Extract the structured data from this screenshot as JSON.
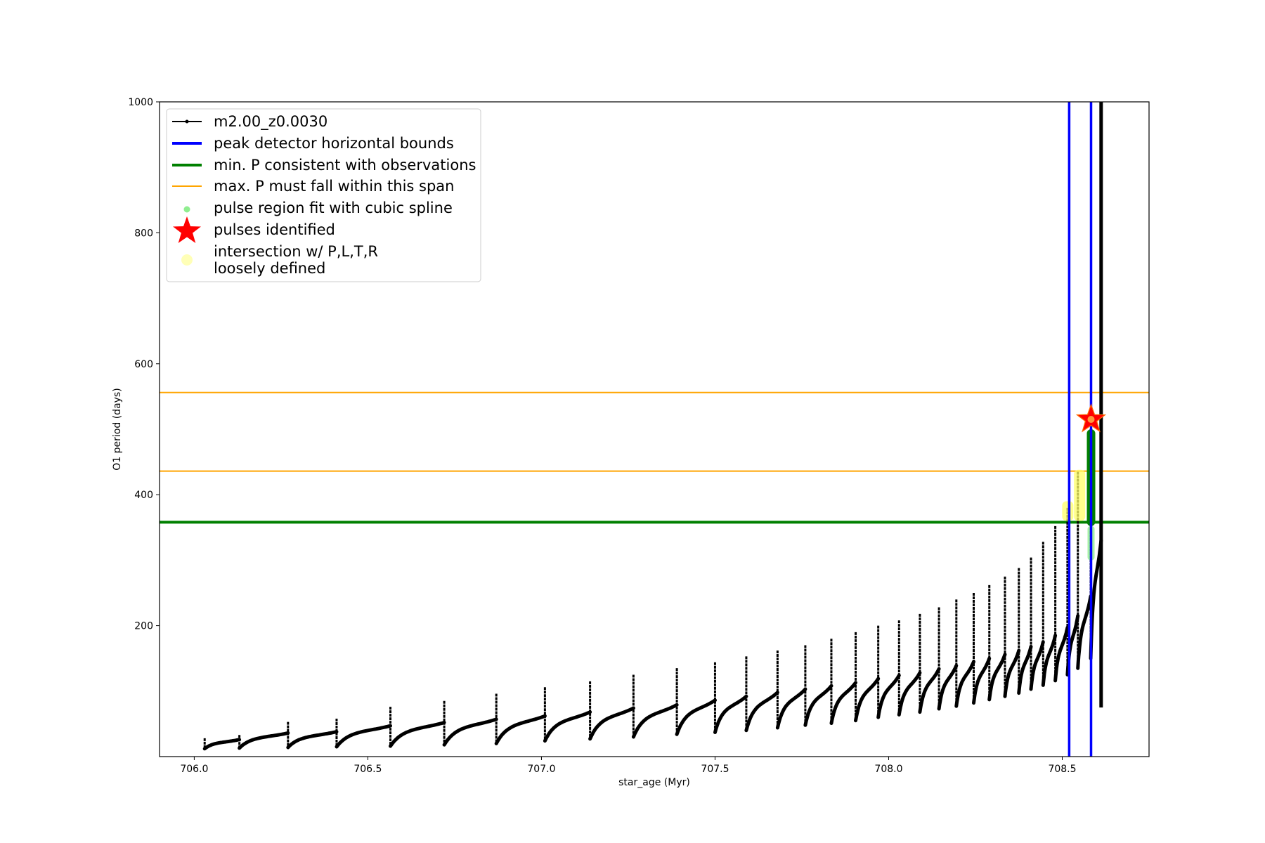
{
  "chart_data": {
    "type": "line",
    "title": "",
    "xlabel": "star_age (Myr)",
    "ylabel": "O1 period (days)",
    "xlim": [
      705.9,
      708.75
    ],
    "ylim": [
      0,
      1000
    ],
    "xticks": [
      706.0,
      706.5,
      707.0,
      707.5,
      708.0,
      708.5
    ],
    "xtick_labels": [
      "706.0",
      "706.5",
      "707.0",
      "707.5",
      "708.0",
      "708.5"
    ],
    "yticks": [
      200,
      400,
      600,
      800,
      1000
    ],
    "ytick_labels": [
      "200",
      "400",
      "600",
      "800",
      "1000"
    ],
    "grid": false,
    "legend_position": "upper-left",
    "colors": {
      "track": "#000000",
      "peak_bounds": "#0000ff",
      "min_period": "#008000",
      "max_period": "#ffa500",
      "pulse_fit": "#90ee90",
      "pulse_fit_dark": "#008000",
      "pulse_star": "#ff0000",
      "intersection": "#ffff66"
    },
    "legend": [
      {
        "label": "m2.00_z0.0030",
        "kind": "line-marker",
        "color": "#000000"
      },
      {
        "label": "peak detector horizontal bounds",
        "kind": "thick-line",
        "color": "#0000ff"
      },
      {
        "label": "min. P consistent with observations",
        "kind": "thick-line",
        "color": "#008000"
      },
      {
        "label": "max. P must fall within this span",
        "kind": "thin-line",
        "color": "#ffa500"
      },
      {
        "label": "pulse region fit with cubic spline",
        "kind": "dot",
        "color": "#90ee90"
      },
      {
        "label": "pulses identified",
        "kind": "star",
        "color": "#ff0000"
      },
      {
        "label": "intersection w/ P,L,T,R",
        "label2": "loosely defined",
        "kind": "big-dot",
        "color": "#ffff99"
      }
    ],
    "series": [
      {
        "name": "m2.00_z0.0030",
        "kind": "pulse-track",
        "pulses": [
          {
            "t": 706.03,
            "base": 12,
            "peak": 28,
            "next_max": 26
          },
          {
            "t": 706.13,
            "base": 13,
            "peak": 33,
            "next_max": 36
          },
          {
            "t": 706.27,
            "base": 14,
            "peak": 53,
            "next_max": 38
          },
          {
            "t": 706.41,
            "base": 15,
            "peak": 58,
            "next_max": 47
          },
          {
            "t": 706.565,
            "base": 16,
            "peak": 76,
            "next_max": 52
          },
          {
            "t": 706.72,
            "base": 18,
            "peak": 85,
            "next_max": 57
          },
          {
            "t": 706.87,
            "base": 20,
            "peak": 96,
            "next_max": 62
          },
          {
            "t": 707.01,
            "base": 24,
            "peak": 106,
            "next_max": 68
          },
          {
            "t": 707.14,
            "base": 27,
            "peak": 115,
            "next_max": 74
          },
          {
            "t": 707.265,
            "base": 30,
            "peak": 125,
            "next_max": 79
          },
          {
            "t": 707.39,
            "base": 34,
            "peak": 135,
            "next_max": 86
          },
          {
            "t": 707.5,
            "base": 37,
            "peak": 144,
            "next_max": 92
          },
          {
            "t": 707.59,
            "base": 40,
            "peak": 153,
            "next_max": 98
          },
          {
            "t": 707.68,
            "base": 44,
            "peak": 162,
            "next_max": 103
          },
          {
            "t": 707.76,
            "base": 48,
            "peak": 170,
            "next_max": 108
          },
          {
            "t": 707.835,
            "base": 51,
            "peak": 180,
            "next_max": 113
          },
          {
            "t": 707.905,
            "base": 55,
            "peak": 190,
            "next_max": 119
          },
          {
            "t": 707.97,
            "base": 60,
            "peak": 200,
            "next_max": 124
          },
          {
            "t": 708.03,
            "base": 64,
            "peak": 208,
            "next_max": 128
          },
          {
            "t": 708.09,
            "base": 68,
            "peak": 218,
            "next_max": 134
          },
          {
            "t": 708.145,
            "base": 73,
            "peak": 228,
            "next_max": 139
          },
          {
            "t": 708.195,
            "base": 77,
            "peak": 240,
            "next_max": 145
          },
          {
            "t": 708.245,
            "base": 82,
            "peak": 250,
            "next_max": 150
          },
          {
            "t": 708.29,
            "base": 87,
            "peak": 262,
            "next_max": 156
          },
          {
            "t": 708.335,
            "base": 92,
            "peak": 275,
            "next_max": 162
          },
          {
            "t": 708.375,
            "base": 97,
            "peak": 288,
            "next_max": 168
          },
          {
            "t": 708.41,
            "base": 103,
            "peak": 304,
            "next_max": 175
          },
          {
            "t": 708.445,
            "base": 109,
            "peak": 328,
            "next_max": 185
          },
          {
            "t": 708.48,
            "base": 116,
            "peak": 352,
            "next_max": 197
          },
          {
            "t": 708.515,
            "base": 125,
            "peak": 380,
            "next_max": 215
          },
          {
            "t": 708.545,
            "base": 135,
            "peak": 435,
            "next_max": 245
          },
          {
            "t": 708.582,
            "base": 150,
            "peak": 500,
            "next_max": 330
          }
        ],
        "final_rise": {
          "t": 708.612,
          "from": 75,
          "to": 1000
        }
      }
    ],
    "vlines": [
      {
        "name": "peak detector horizontal bounds",
        "x": 708.52
      },
      {
        "name": "peak detector horizontal bounds",
        "x": 708.583
      }
    ],
    "hlines": [
      {
        "name": "min. P consistent with observations",
        "y": 358
      },
      {
        "name": "max. P must fall within this span",
        "y": 436
      },
      {
        "name": "max. P must fall within this span",
        "y": 556
      }
    ],
    "pulse_fit": {
      "x": 708.583,
      "y_from": 352,
      "y_to": 500,
      "light_from": 300,
      "light_to": 352
    },
    "intersections": [
      {
        "x": 708.516,
        "y_from": 360,
        "y_to": 390
      },
      {
        "x": 708.55,
        "y_from": 360,
        "y_to": 438
      }
    ],
    "pulses_identified": [
      {
        "x": 708.583,
        "y": 515
      }
    ]
  }
}
